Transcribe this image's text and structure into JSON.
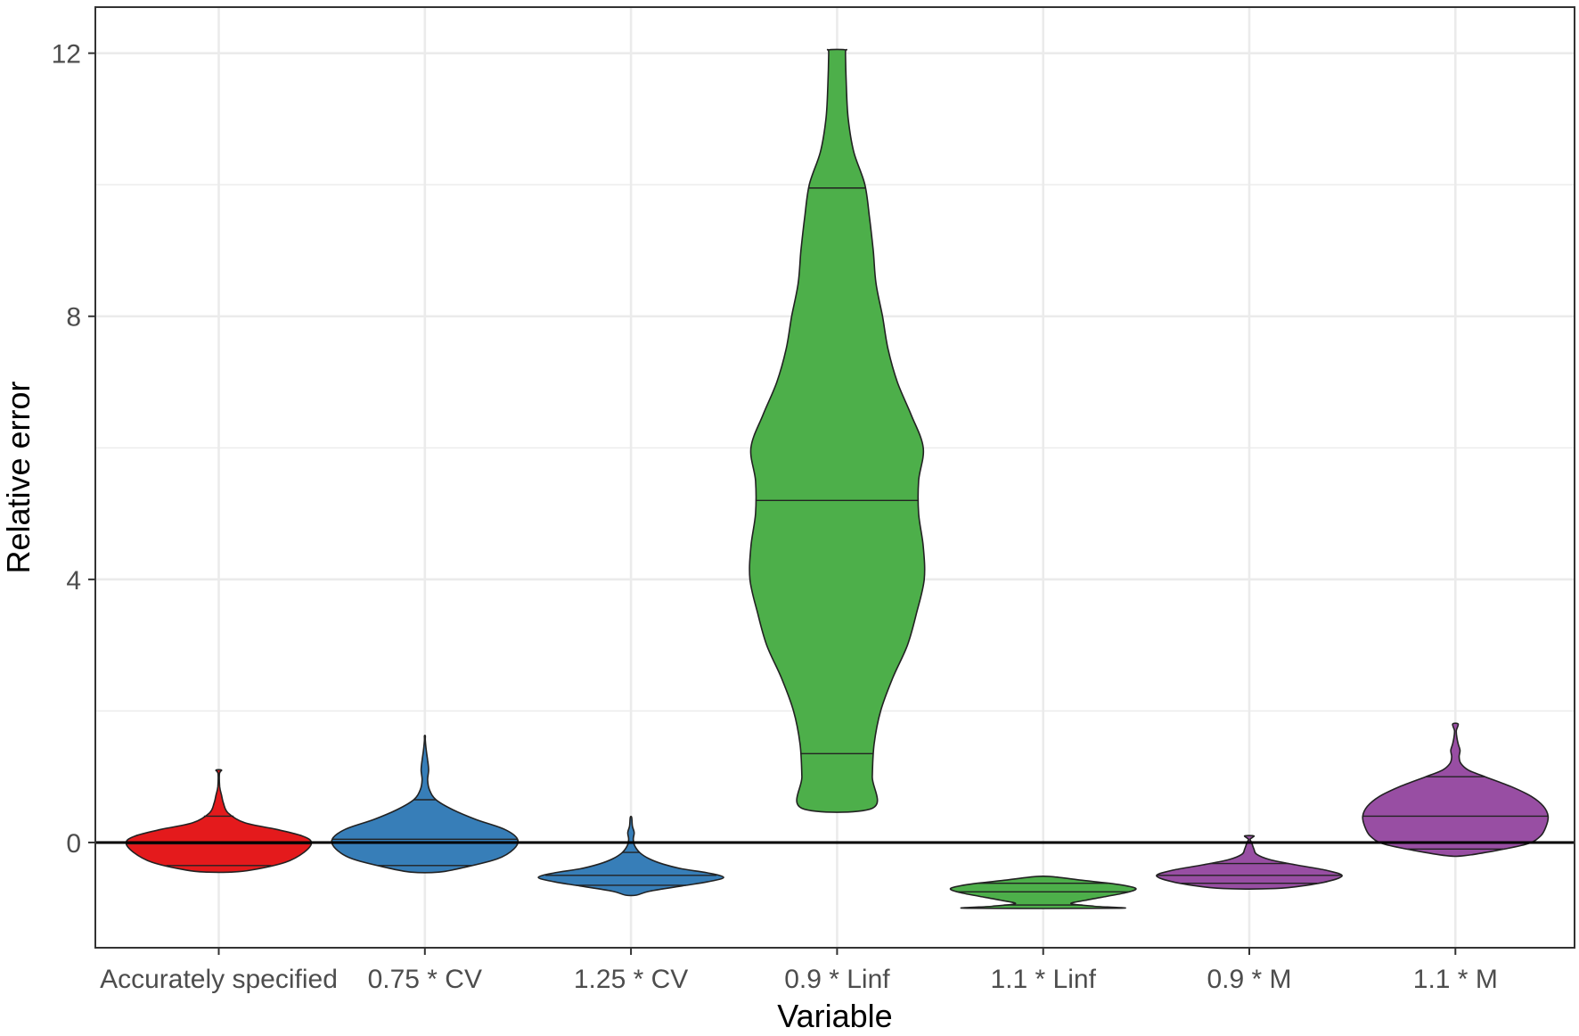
{
  "chart_data": {
    "type": "violin",
    "xlabel": "Variable",
    "ylabel": "Relative error",
    "ylim": [
      -1.6,
      12.7
    ],
    "yticks": [
      0,
      4,
      8,
      12
    ],
    "grid": true,
    "reference_line_y": 0,
    "categories": [
      "Accurately specified",
      "0.75 * CV",
      "1.25 * CV",
      "0.9 * Linf",
      "1.1 * Linf",
      "0.9 * M",
      "1.1 * M"
    ],
    "series": [
      {
        "category": "Accurately specified",
        "color": "#e41a1c",
        "min": -0.45,
        "max": 1.1,
        "quantiles": [
          -0.35,
          -0.02,
          0.4
        ],
        "profile": [
          [
            -0.45,
            0.12
          ],
          [
            -0.42,
            0.35
          ],
          [
            -0.3,
            0.72
          ],
          [
            -0.15,
            0.92
          ],
          [
            0.0,
            1.0
          ],
          [
            0.1,
            0.9
          ],
          [
            0.2,
            0.62
          ],
          [
            0.3,
            0.28
          ],
          [
            0.45,
            0.1
          ],
          [
            0.6,
            0.05
          ],
          [
            0.72,
            0.03
          ],
          [
            0.85,
            0.01
          ],
          [
            1.05,
            0.008
          ],
          [
            1.1,
            0.03
          ]
        ]
      },
      {
        "category": "0.75 * CV",
        "color": "#377eb8",
        "min": -0.45,
        "max": 1.62,
        "quantiles": [
          -0.35,
          0.05,
          0.65
        ],
        "profile": [
          [
            -0.45,
            0.15
          ],
          [
            -0.38,
            0.42
          ],
          [
            -0.25,
            0.78
          ],
          [
            -0.1,
            0.96
          ],
          [
            0.05,
            1.0
          ],
          [
            0.2,
            0.86
          ],
          [
            0.35,
            0.55
          ],
          [
            0.5,
            0.3
          ],
          [
            0.65,
            0.12
          ],
          [
            0.8,
            0.05
          ],
          [
            0.95,
            0.03
          ],
          [
            1.1,
            0.04
          ],
          [
            1.25,
            0.03
          ],
          [
            1.4,
            0.015
          ],
          [
            1.55,
            0.005
          ],
          [
            1.62,
            0.005
          ]
        ]
      },
      {
        "category": "1.25 * CV",
        "color": "#377eb8",
        "min": -0.8,
        "max": 0.38,
        "quantiles": [
          -0.65,
          -0.5,
          -0.15
        ],
        "profile": [
          [
            -0.8,
            0.06
          ],
          [
            -0.74,
            0.2
          ],
          [
            -0.66,
            0.55
          ],
          [
            -0.6,
            0.82
          ],
          [
            -0.53,
            1.0
          ],
          [
            -0.46,
            0.82
          ],
          [
            -0.4,
            0.55
          ],
          [
            -0.33,
            0.35
          ],
          [
            -0.25,
            0.2
          ],
          [
            -0.16,
            0.1
          ],
          [
            -0.05,
            0.04
          ],
          [
            0.05,
            0.025
          ],
          [
            0.15,
            0.035
          ],
          [
            0.25,
            0.015
          ],
          [
            0.38,
            0.008
          ]
        ]
      },
      {
        "category": "0.9 * Linf",
        "color": "#4daf4a",
        "min": 0.52,
        "max": 12.05,
        "quantiles": [
          1.35,
          5.2,
          9.95
        ],
        "profile": [
          [
            0.52,
            0.38
          ],
          [
            1.0,
            0.38
          ],
          [
            1.5,
            0.4
          ],
          [
            2.0,
            0.47
          ],
          [
            2.5,
            0.6
          ],
          [
            3.0,
            0.76
          ],
          [
            3.5,
            0.86
          ],
          [
            4.0,
            0.94
          ],
          [
            4.5,
            0.93
          ],
          [
            5.0,
            0.88
          ],
          [
            5.5,
            0.88
          ],
          [
            6.0,
            0.93
          ],
          [
            6.5,
            0.8
          ],
          [
            7.0,
            0.65
          ],
          [
            7.5,
            0.55
          ],
          [
            8.0,
            0.49
          ],
          [
            8.5,
            0.42
          ],
          [
            9.0,
            0.39
          ],
          [
            9.5,
            0.35
          ],
          [
            10.0,
            0.3
          ],
          [
            10.5,
            0.18
          ],
          [
            11.0,
            0.12
          ],
          [
            11.5,
            0.1
          ],
          [
            12.0,
            0.09
          ],
          [
            12.05,
            0.09
          ]
        ]
      },
      {
        "category": "1.1 * Linf",
        "color": "#4daf4a",
        "min": -1.0,
        "max": -0.52,
        "quantiles": [
          -0.95,
          -0.75,
          -0.62
        ],
        "profile": [
          [
            -1.0,
            0.82
          ],
          [
            -0.97,
            0.55
          ],
          [
            -0.93,
            0.3
          ],
          [
            -0.88,
            0.45
          ],
          [
            -0.82,
            0.68
          ],
          [
            -0.76,
            0.9
          ],
          [
            -0.7,
            1.0
          ],
          [
            -0.64,
            0.82
          ],
          [
            -0.58,
            0.45
          ],
          [
            -0.52,
            0.1
          ]
        ]
      },
      {
        "category": "0.9 * M",
        "color": "#984ea3",
        "min": -0.7,
        "max": 0.1,
        "quantiles": [
          -0.62,
          -0.5,
          -0.32
        ],
        "profile": [
          [
            -0.7,
            0.28
          ],
          [
            -0.65,
            0.62
          ],
          [
            -0.58,
            0.88
          ],
          [
            -0.5,
            1.0
          ],
          [
            -0.42,
            0.82
          ],
          [
            -0.34,
            0.5
          ],
          [
            -0.26,
            0.22
          ],
          [
            -0.18,
            0.08
          ],
          [
            -0.1,
            0.05
          ],
          [
            0.0,
            0.025
          ],
          [
            0.05,
            0.01
          ],
          [
            0.1,
            0.05
          ]
        ]
      },
      {
        "category": "1.1 * M",
        "color": "#984ea3",
        "min": -0.2,
        "max": 1.8,
        "quantiles": [
          -0.1,
          0.4,
          1.0
        ],
        "profile": [
          [
            -0.2,
            0.1
          ],
          [
            -0.12,
            0.45
          ],
          [
            -0.02,
            0.78
          ],
          [
            0.1,
            0.92
          ],
          [
            0.25,
            0.98
          ],
          [
            0.4,
            1.0
          ],
          [
            0.55,
            0.95
          ],
          [
            0.7,
            0.82
          ],
          [
            0.85,
            0.6
          ],
          [
            1.0,
            0.32
          ],
          [
            1.1,
            0.14
          ],
          [
            1.2,
            0.06
          ],
          [
            1.3,
            0.04
          ],
          [
            1.4,
            0.05
          ],
          [
            1.5,
            0.03
          ],
          [
            1.6,
            0.015
          ],
          [
            1.7,
            0.01
          ],
          [
            1.8,
            0.03
          ]
        ]
      }
    ]
  }
}
